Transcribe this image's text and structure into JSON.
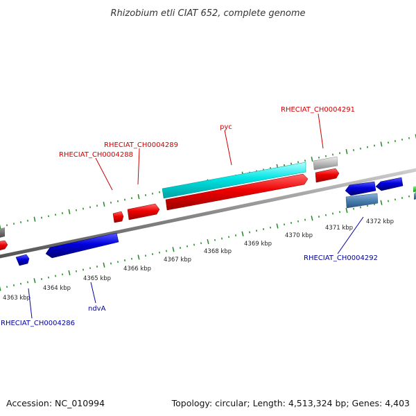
{
  "header": {
    "title": "Rhizobium etli CIAT 652, complete genome"
  },
  "footer": {
    "accession": "Accession: NC_010994",
    "summary": "Topology: circular; Length: 4,513,324 bp; Genes: 4,403"
  },
  "scale": {
    "unit": "kbp",
    "labels": [
      "4363 kbp",
      "4364 kbp",
      "4365 kbp",
      "4366 kbp",
      "4367 kbp",
      "4368 kbp",
      "4369 kbp",
      "4370 kbp",
      "4371 kbp",
      "4372 kbp"
    ]
  },
  "gene_labels": {
    "forward": [
      "RHECIAT_CH0004288",
      "RHECIAT_CH0004289",
      "pyc",
      "RHECIAT_CH0004291"
    ],
    "reverse": [
      "RHECIAT_CH0004286",
      "ndvA",
      "RHECIAT_CH0004292"
    ]
  },
  "colors": {
    "forward_gene": "#ee0000",
    "reverse_gene": "#0000cc",
    "cds_feature": "#00e8e8",
    "reverse_feature": "#4a7fb0",
    "other_feature": "#bbbbbb",
    "backbone": "#888888",
    "ticks": "#228822",
    "label_red": "#cc0000",
    "label_blue": "#000099"
  }
}
